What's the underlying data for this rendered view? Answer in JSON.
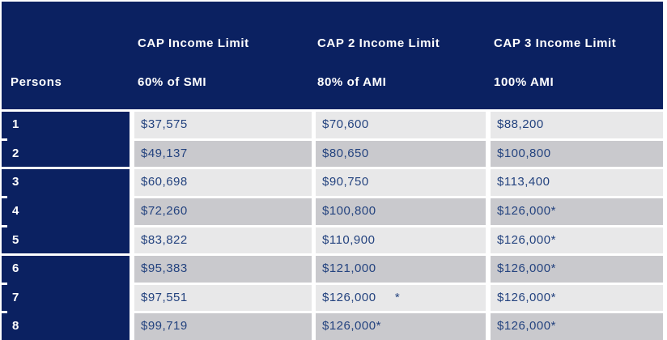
{
  "table": {
    "columns": [
      {
        "line1": "",
        "line2": "Persons"
      },
      {
        "line1": "CAP Income Limit",
        "line2": "60% of SMI"
      },
      {
        "line1": "CAP 2 Income Limit",
        "line2": "80% of AMI"
      },
      {
        "line1": "CAP 3 Income Limit",
        "line2": "100% AMI"
      }
    ],
    "rows": [
      {
        "persons": "1",
        "cap": "$37,575",
        "cap2": "$70,600",
        "cap3": "$88,200"
      },
      {
        "persons": "2",
        "cap": "$49,137",
        "cap2": "$80,650",
        "cap3": "$100,800"
      },
      {
        "persons": "3",
        "cap": "$60,698",
        "cap2": "$90,750",
        "cap3": "$113,400"
      },
      {
        "persons": "4",
        "cap": "$72,260",
        "cap2": "$100,800",
        "cap3": "$126,000*"
      },
      {
        "persons": "5",
        "cap": "$83,822",
        "cap2": "$110,900",
        "cap3": "$126,000*"
      },
      {
        "persons": "6",
        "cap": "$95,383",
        "cap2": "$121,000",
        "cap3": "$126,000*"
      },
      {
        "persons": "7",
        "cap": "$97,551",
        "cap2": "$126,000     *",
        "cap3": "$126,000*"
      },
      {
        "persons": "8",
        "cap": "$99,719",
        "cap2": "$126,000*",
        "cap3": "$126,000*"
      }
    ],
    "colors": {
      "header_bg": "#0b2161",
      "header_text": "#ffffff",
      "row_light": "#e8e8e9",
      "row_medium": "#c9c9cd",
      "value_text": "#24437f"
    }
  }
}
